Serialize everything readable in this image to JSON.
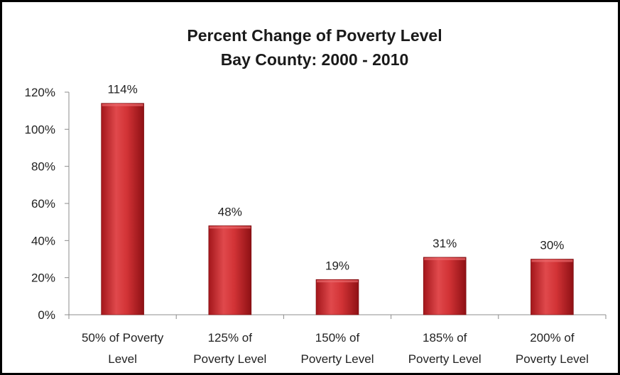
{
  "chart_data": {
    "type": "bar",
    "title_lines": [
      "Percent Change of Poverty Level",
      "Bay County: 2000 - 2010"
    ],
    "categories": [
      [
        "50% of Poverty",
        "Level"
      ],
      [
        "125% of",
        "Poverty Level"
      ],
      [
        "150% of",
        "Poverty Level"
      ],
      [
        "185% of",
        "Poverty Level"
      ],
      [
        "200% of",
        "Poverty Level"
      ]
    ],
    "values": [
      114,
      48,
      19,
      31,
      30
    ],
    "data_labels": [
      "114%",
      "48%",
      "19%",
      "31%",
      "30%"
    ],
    "y_ticks": [
      "0%",
      "20%",
      "40%",
      "60%",
      "80%",
      "100%",
      "120%"
    ],
    "ylim": [
      0,
      120
    ],
    "grid": false,
    "legend": "none",
    "bar_color": "#c0262a"
  }
}
